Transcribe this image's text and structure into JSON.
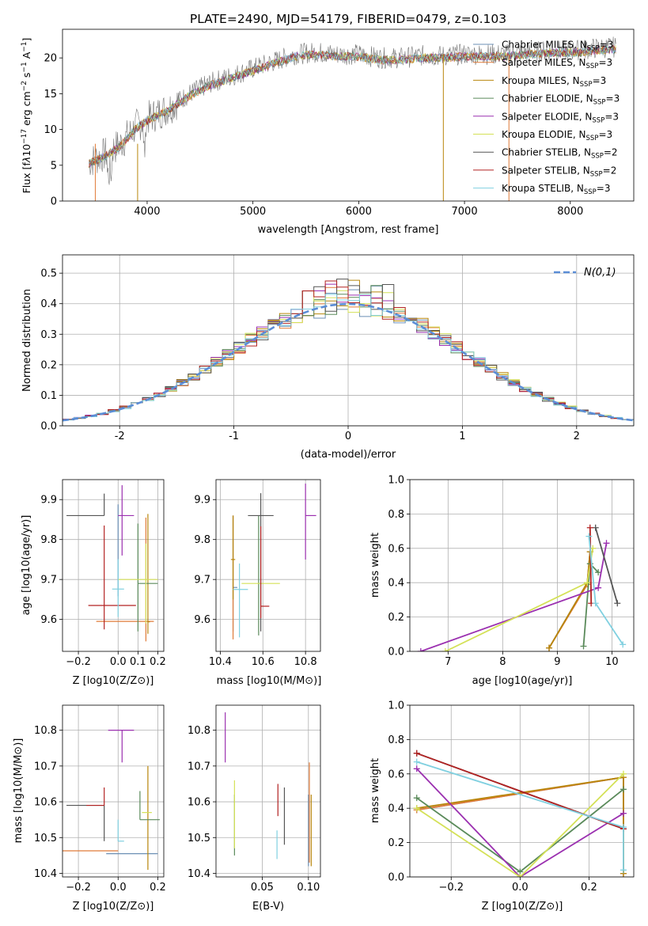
{
  "series_colors": [
    "#6b8fb5",
    "#e07b39",
    "#b8860b",
    "#5a8a5a",
    "#9b30b0",
    "#d4e157",
    "#555555",
    "#b22222",
    "#80d0e0"
  ],
  "legend_labels": [
    "Chabrier MILES, N_SSP=3",
    "Salpeter MILES, N_SSP=3",
    "Kroupa MILES, N_SSP=3",
    "Chabrier ELODIE, N_SSP=3",
    "Salpeter ELODIE, N_SSP=3",
    "Kroupa ELODIE, N_SSP=3",
    "Chabrier STELIB, N_SSP=2",
    "Salpeter STELIB, N_SSP=2",
    "Kroupa STELIB, N_SSP=3"
  ],
  "chart_data": [
    {
      "id": "spectrum",
      "type": "line",
      "title": "PLATE=2490, MJD=54179, FIBERID=0479, z=0.103",
      "xlabel": "wavelength [Angstrom, rest frame]",
      "ylabel": "Flux [f_λ 10^-17 erg cm^-2 s^-1 A^-1]",
      "xlim": [
        3200,
        8600
      ],
      "ylim": [
        0,
        24
      ],
      "xticks": [
        4000,
        5000,
        6000,
        7000,
        8000
      ],
      "yticks": [
        0,
        5,
        10,
        15,
        20
      ],
      "grid": false,
      "legend": "top-right",
      "continuum": {
        "x": [
          3450,
          3600,
          3750,
          3900,
          4000,
          4200,
          4400,
          4600,
          4800,
          5000,
          5200,
          5400,
          5600,
          5800,
          6000,
          6200,
          6400,
          6600,
          6800,
          7000,
          7200,
          7400,
          7600,
          7800,
          8000,
          8200,
          8400
        ],
        "y": [
          5.5,
          6.5,
          8,
          10.5,
          11.5,
          13,
          15,
          16.5,
          17.5,
          18.5,
          19.5,
          20.5,
          20.8,
          20.5,
          20.5,
          20,
          20,
          20.3,
          20.3,
          20.5,
          20.5,
          20.5,
          20.8,
          21,
          21,
          21.3,
          21.5
        ]
      },
      "model_fits": 9
    },
    {
      "id": "residual-hist",
      "type": "line",
      "xlabel": "(data-model)/error",
      "ylabel": "Normed distribution",
      "xlim": [
        -2.5,
        2.5
      ],
      "ylim": [
        0,
        0.56
      ],
      "xticks": [
        -2,
        -1,
        0,
        1,
        2
      ],
      "yticks": [
        0.0,
        0.1,
        0.2,
        0.3,
        0.4,
        0.5
      ],
      "grid": true,
      "legend": "top-right",
      "reference_curve": "N(0,1)",
      "bin_width": 0.1,
      "bin_range": [
        -2.5,
        2.5
      ]
    },
    {
      "id": "z-age",
      "type": "scatter",
      "xlabel": "Z [log10(Z/Z⊙)]",
      "ylabel": "age [log10(age/yr)]",
      "xlim": [
        -0.28,
        0.23
      ],
      "ylim": [
        9.52,
        9.95
      ],
      "xticks": [
        -0.2,
        0.0,
        0.1,
        0.2
      ],
      "xticklabels": [
        "−0.2",
        "0.0",
        "0.1",
        "0.2"
      ],
      "yticks": [
        9.6,
        9.7,
        9.8,
        9.9
      ],
      "grid": true,
      "points": [
        {
          "x": 0.0,
          "y": 9.858,
          "dx": [
            0.0,
            0.0
          ],
          "dy": [
            0.2,
            0.03
          ]
        },
        {
          "x": 0.14,
          "y": 9.595,
          "dx": [
            0.25,
            0.04
          ],
          "dy": [
            0.05,
            0.26
          ]
        },
        {
          "x": 0.15,
          "y": 9.594,
          "dx": [
            0.0,
            0.01
          ],
          "dy": [
            0.03,
            0.27
          ]
        },
        {
          "x": 0.1,
          "y": 9.69,
          "dx": [
            0.0,
            0.1
          ],
          "dy": [
            0.12,
            0.15
          ]
        },
        {
          "x": 0.02,
          "y": 9.86,
          "dx": [
            0.02,
            0.06
          ],
          "dy": [
            0.1,
            0.076
          ]
        },
        {
          "x": 0.14,
          "y": 9.7,
          "dx": [
            0.14,
            0.06
          ],
          "dy": [
            0.11,
            0.09
          ]
        },
        {
          "x": -0.07,
          "y": 9.86,
          "dx": [
            0.19,
            0.0
          ],
          "dy": [
            0.0,
            0.055
          ]
        },
        {
          "x": -0.07,
          "y": 9.635,
          "dx": [
            0.08,
            0.16
          ],
          "dy": [
            0.06,
            0.2
          ]
        },
        {
          "x": 0.0,
          "y": 9.676,
          "dx": [
            0.03,
            0.03
          ],
          "dy": [
            0.07,
            0.075
          ]
        }
      ]
    },
    {
      "id": "mass-age",
      "type": "scatter",
      "xlabel": "mass [log10(M/M⊙)]",
      "ylabel": "",
      "xlim": [
        10.38,
        10.87
      ],
      "ylim": [
        9.52,
        9.95
      ],
      "xticks": [
        10.4,
        10.6,
        10.8
      ],
      "xticklabels": [
        "10.4",
        "10.6",
        "10.8"
      ],
      "yticks": [
        9.6,
        9.7,
        9.8,
        9.9
      ],
      "grid": true,
      "points": [
        {
          "x": 10.46,
          "y": 9.68,
          "dx": [
            0.0,
            0.02
          ],
          "dy": [
            0.11,
            0.18
          ]
        },
        {
          "x": 10.46,
          "y": 9.67,
          "dx": [
            0.0,
            0.0
          ],
          "dy": [
            0.12,
            0.19
          ]
        },
        {
          "x": 10.46,
          "y": 9.75,
          "dx": [
            0.01,
            0.01
          ],
          "dy": [
            0.1,
            0.11
          ]
        },
        {
          "x": 10.58,
          "y": 9.69,
          "dx": [
            0.0,
            0.0
          ],
          "dy": [
            0.13,
            0.17
          ]
        },
        {
          "x": 10.8,
          "y": 9.86,
          "dx": [
            0.0,
            0.05
          ],
          "dy": [
            0.11,
            0.08
          ]
        },
        {
          "x": 10.58,
          "y": 9.69,
          "dx": [
            0.08,
            0.1
          ],
          "dy": [
            0.0,
            0.0
          ]
        },
        {
          "x": 10.59,
          "y": 9.86,
          "dx": [
            0.06,
            0.06
          ],
          "dy": [
            0.29,
            0.056
          ]
        },
        {
          "x": 10.59,
          "y": 9.633,
          "dx": [
            0.0,
            0.04
          ],
          "dy": [
            0.03,
            0.2
          ]
        },
        {
          "x": 10.49,
          "y": 9.675,
          "dx": [
            0.03,
            0.04
          ],
          "dy": [
            0.12,
            0.065
          ]
        }
      ]
    },
    {
      "id": "age-weight",
      "type": "line",
      "xlabel": "age [log10(age/yr)]",
      "ylabel": "mass weight",
      "xlim": [
        6.3,
        10.4
      ],
      "ylim": [
        0,
        1
      ],
      "xticks": [
        7,
        8,
        9,
        10
      ],
      "yticks": [
        0.0,
        0.2,
        0.4,
        0.6,
        0.8,
        1.0
      ],
      "grid": true,
      "series": [
        {
          "x": [
            8.85,
            9.55,
            9.6
          ],
          "y": [
            0.02,
            0.4,
            0.58
          ]
        },
        {
          "x": [
            8.85,
            9.55,
            9.6
          ],
          "y": [
            0.02,
            0.39,
            0.58
          ]
        },
        {
          "x": [
            8.85,
            9.55,
            9.6
          ],
          "y": [
            0.02,
            0.4,
            0.58
          ]
        },
        {
          "x": [
            9.48,
            9.6,
            9.75
          ],
          "y": [
            0.03,
            0.51,
            0.46
          ]
        },
        {
          "x": [
            6.5,
            9.75,
            9.9
          ],
          "y": [
            0.0,
            0.37,
            0.63
          ]
        },
        {
          "x": [
            6.95,
            9.55,
            9.65
          ],
          "y": [
            0.0,
            0.4,
            0.6
          ]
        },
        {
          "x": [
            9.7,
            10.1
          ],
          "y": [
            0.72,
            0.28
          ]
        },
        {
          "x": [
            9.6,
            9.62
          ],
          "y": [
            0.72,
            0.28
          ]
        },
        {
          "x": [
            9.58,
            9.7,
            10.2
          ],
          "y": [
            0.67,
            0.28,
            0.04
          ]
        }
      ]
    },
    {
      "id": "z-mass",
      "type": "scatter",
      "xlabel": "Z [log10(Z/Z⊙)]",
      "ylabel": "mass [log10(M/M⊙)]",
      "xlim": [
        -0.28,
        0.23
      ],
      "ylim": [
        10.39,
        10.87
      ],
      "xticks": [
        -0.2,
        0.0,
        0.2
      ],
      "xticklabels": [
        "−0.2",
        "0.0",
        "0.2"
      ],
      "yticks": [
        10.4,
        10.5,
        10.6,
        10.7,
        10.8
      ],
      "grid": true,
      "points": [
        {
          "x": 0.06,
          "y": 10.455,
          "dx": [
            0.12,
            0.14
          ],
          "dy": [
            0.0,
            0.0
          ]
        },
        {
          "x": 0.0,
          "y": 10.463,
          "dx": [
            0.3,
            0.0
          ],
          "dy": [
            0.0,
            0.0
          ]
        },
        {
          "x": 0.15,
          "y": 10.58,
          "dx": [
            0.0,
            0.0
          ],
          "dy": [
            0.17,
            0.12
          ]
        },
        {
          "x": 0.11,
          "y": 10.55,
          "dx": [
            0.0,
            0.1
          ],
          "dy": [
            0.0,
            0.08
          ]
        },
        {
          "x": 0.02,
          "y": 10.8,
          "dx": [
            0.07,
            0.06
          ],
          "dy": [
            0.09,
            0.0
          ]
        },
        {
          "x": 0.12,
          "y": 10.57,
          "dx": [
            0.0,
            0.05
          ],
          "dy": [
            0.0,
            0.0
          ]
        },
        {
          "x": -0.07,
          "y": 10.59,
          "dx": [
            0.19,
            0.0
          ],
          "dy": [
            0.1,
            0.0
          ]
        },
        {
          "x": -0.07,
          "y": 10.59,
          "dx": [
            0.09,
            0.0
          ],
          "dy": [
            0.0,
            0.05
          ]
        },
        {
          "x": 0.0,
          "y": 10.49,
          "dx": [
            0.0,
            0.03
          ],
          "dy": [
            0.0,
            0.06
          ]
        }
      ]
    },
    {
      "id": "ebv-mass",
      "type": "scatter",
      "xlabel": "E(B-V)",
      "ylabel": "",
      "xlim": [
        0.0,
        0.113
      ],
      "ylim": [
        10.39,
        10.87
      ],
      "xticks": [
        0.05,
        0.1
      ],
      "xticklabels": [
        "0.05",
        "0.10"
      ],
      "yticks": [
        10.4,
        10.5,
        10.6,
        10.7,
        10.8
      ],
      "grid": true,
      "points": [
        {
          "x": 0.1,
          "y": 10.52,
          "dx": [
            0,
            0
          ],
          "dy": [
            0.1,
            0.1
          ]
        },
        {
          "x": 0.101,
          "y": 10.56,
          "dx": [
            0,
            0
          ],
          "dy": [
            0.13,
            0.15
          ]
        },
        {
          "x": 0.103,
          "y": 10.51,
          "dx": [
            0,
            0
          ],
          "dy": [
            0.09,
            0.11
          ]
        },
        {
          "x": 0.02,
          "y": 10.56,
          "dx": [
            0,
            0
          ],
          "dy": [
            0.11,
            0.06
          ]
        },
        {
          "x": 0.01,
          "y": 10.78,
          "dx": [
            0,
            0
          ],
          "dy": [
            0.07,
            0.07
          ]
        },
        {
          "x": 0.02,
          "y": 10.56,
          "dx": [
            0,
            0
          ],
          "dy": [
            0.09,
            0.1
          ]
        },
        {
          "x": 0.074,
          "y": 10.56,
          "dx": [
            0,
            0
          ],
          "dy": [
            0.08,
            0.08
          ]
        },
        {
          "x": 0.067,
          "y": 10.6,
          "dx": [
            0,
            0
          ],
          "dy": [
            0.04,
            0.05
          ]
        },
        {
          "x": 0.066,
          "y": 10.48,
          "dx": [
            0,
            0
          ],
          "dy": [
            0.04,
            0.04
          ]
        }
      ]
    },
    {
      "id": "z-weight",
      "type": "line",
      "xlabel": "Z [log10(Z/Z⊙)]",
      "ylabel": "mass weight",
      "xlim": [
        -0.32,
        0.33
      ],
      "ylim": [
        0,
        1
      ],
      "xticks": [
        -0.2,
        0.0,
        0.2
      ],
      "xticklabels": [
        "−0.2",
        "0.0",
        "0.2"
      ],
      "yticks": [
        0.0,
        0.2,
        0.4,
        0.6,
        0.8,
        1.0
      ],
      "grid": true,
      "series": [
        {
          "x": [
            -0.3,
            0.3,
            0.3
          ],
          "y": [
            0.39,
            0.58,
            0.02
          ]
        },
        {
          "x": [
            -0.3,
            0.3,
            0.3
          ],
          "y": [
            0.39,
            0.58,
            0.02
          ]
        },
        {
          "x": [
            -0.3,
            0.3,
            0.3
          ],
          "y": [
            0.4,
            0.58,
            0.02
          ]
        },
        {
          "x": [
            -0.3,
            0.0,
            0.3
          ],
          "y": [
            0.46,
            0.03,
            0.51
          ]
        },
        {
          "x": [
            -0.3,
            0.0,
            0.3
          ],
          "y": [
            0.63,
            0.0,
            0.37
          ]
        },
        {
          "x": [
            -0.3,
            0.0,
            0.3
          ],
          "y": [
            0.4,
            0.0,
            0.6
          ]
        },
        {
          "x": [
            -0.3,
            0.3
          ],
          "y": [
            0.72,
            0.28
          ]
        },
        {
          "x": [
            -0.3,
            0.3
          ],
          "y": [
            0.72,
            0.28
          ]
        },
        {
          "x": [
            -0.3,
            0.3,
            0.3
          ],
          "y": [
            0.67,
            0.29,
            0.04
          ]
        }
      ]
    }
  ]
}
